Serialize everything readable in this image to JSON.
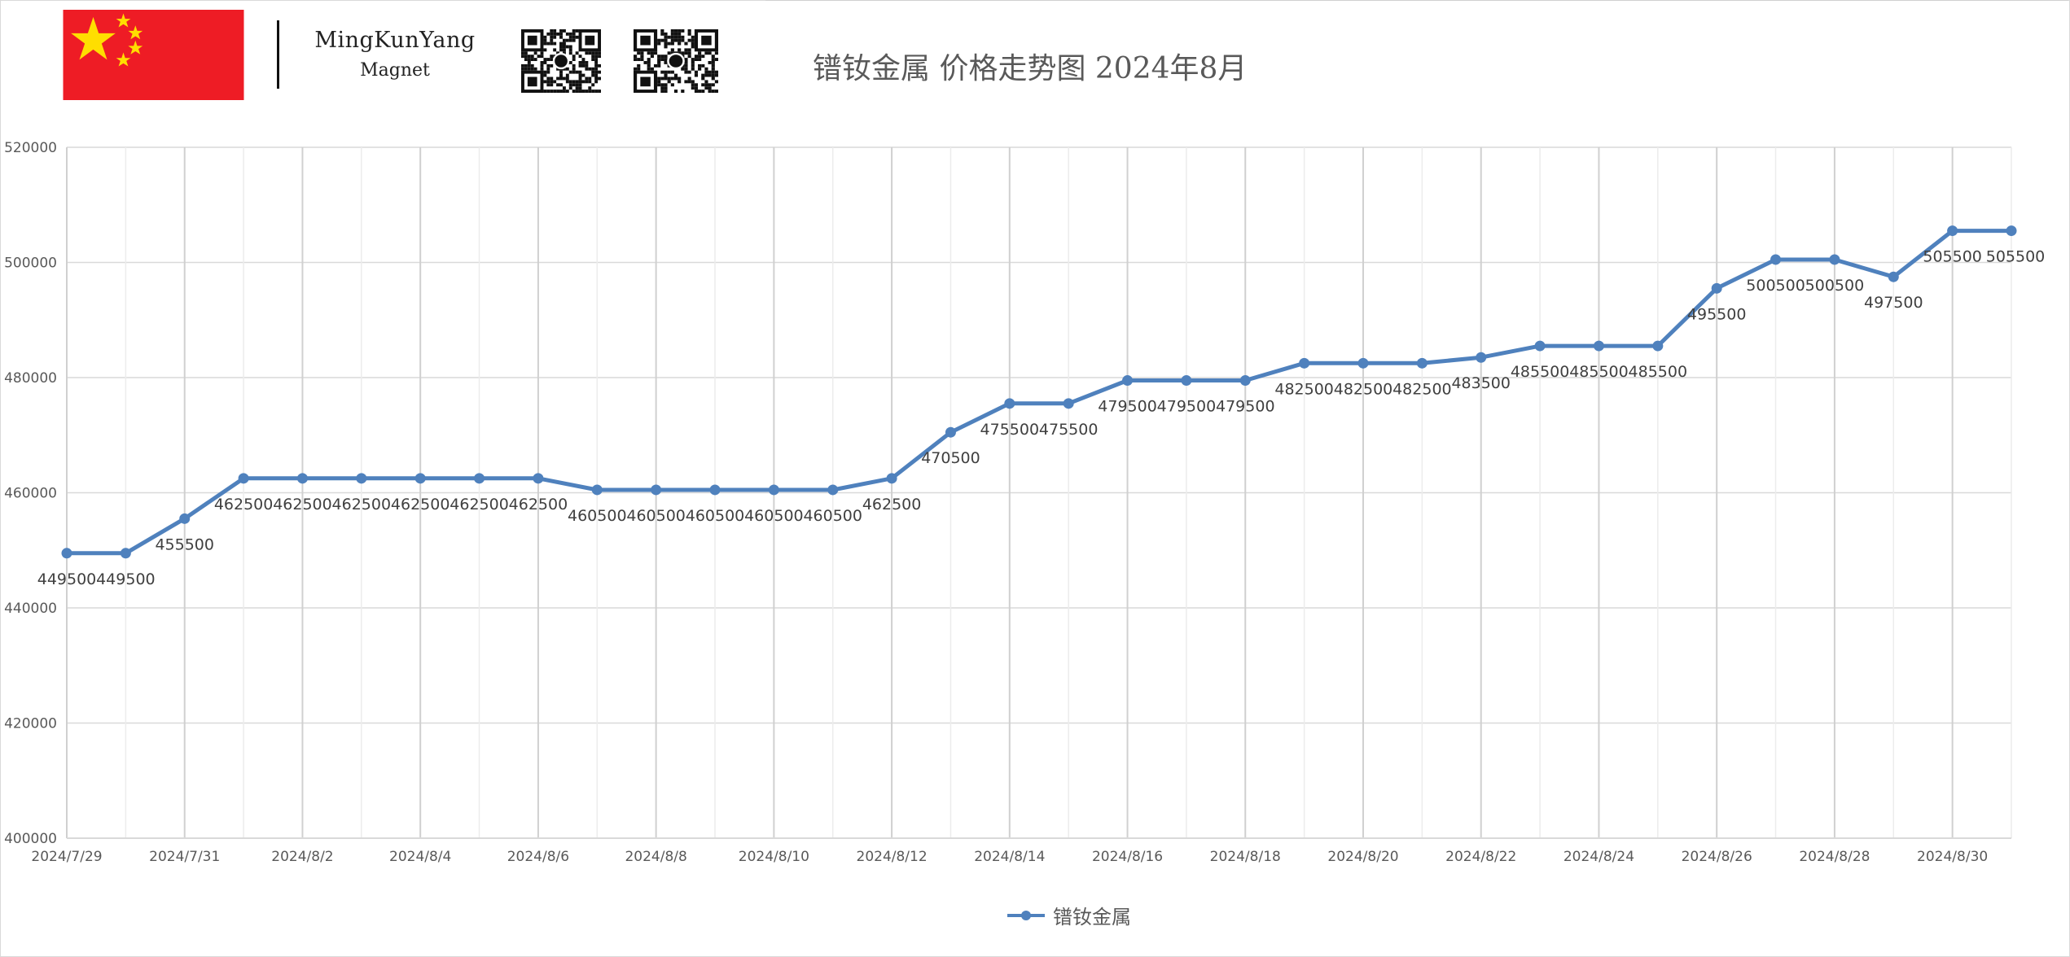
{
  "header": {
    "brand_name": "MingKunYang",
    "brand_sub": "Magnet",
    "title": "镨钕金属 价格走势图 2024年8月"
  },
  "colors": {
    "series": "#4f81bd",
    "flag_red": "#ee1c25",
    "flag_star": "#ffde00",
    "grid": "#d9d9d9",
    "text": "#595959"
  },
  "icons": {
    "flag": "china-flag-icon",
    "qr1": "whatsapp-qr-icon",
    "qr2": "facebook-qr-icon"
  },
  "chart_data": {
    "type": "line",
    "title": "镨钕金属 价格走势图 2024年8月",
    "x": [
      "2024/7/29",
      "2024/7/30",
      "2024/7/31",
      "2024/8/1",
      "2024/8/2",
      "2024/8/3",
      "2024/8/4",
      "2024/8/5",
      "2024/8/6",
      "2024/8/7",
      "2024/8/8",
      "2024/8/9",
      "2024/8/10",
      "2024/8/11",
      "2024/8/12",
      "2024/8/13",
      "2024/8/14",
      "2024/8/15",
      "2024/8/16",
      "2024/8/17",
      "2024/8/18",
      "2024/8/19",
      "2024/8/20",
      "2024/8/21",
      "2024/8/22",
      "2024/8/23",
      "2024/8/24",
      "2024/8/25",
      "2024/8/26",
      "2024/8/27",
      "2024/8/28",
      "2024/8/29",
      "2024/8/30",
      "2024/8/31"
    ],
    "x_tick_labels": [
      "2024/7/29",
      "2024/7/31",
      "2024/8/2",
      "2024/8/4",
      "2024/8/6",
      "2024/8/8",
      "2024/8/10",
      "2024/8/12",
      "2024/8/14",
      "2024/8/16",
      "2024/8/18",
      "2024/8/20",
      "2024/8/22",
      "2024/8/24",
      "2024/8/26",
      "2024/8/28",
      "2024/8/30"
    ],
    "series": [
      {
        "name": "镨钕金属",
        "values": [
          449500,
          449500,
          455500,
          462500,
          462500,
          462500,
          462500,
          462500,
          462500,
          460500,
          460500,
          460500,
          460500,
          460500,
          462500,
          470500,
          475500,
          475500,
          479500,
          479500,
          479500,
          482500,
          482500,
          482500,
          483500,
          485500,
          485500,
          485500,
          495500,
          500500,
          500500,
          497500,
          505500,
          505500
        ]
      }
    ],
    "ylim": [
      400000,
      520000
    ],
    "y_ticks": [
      "400000",
      "420000",
      "440000",
      "460000",
      "480000",
      "500000",
      "520000"
    ],
    "grid": true,
    "legend_position": "bottom",
    "data_labels": true
  }
}
